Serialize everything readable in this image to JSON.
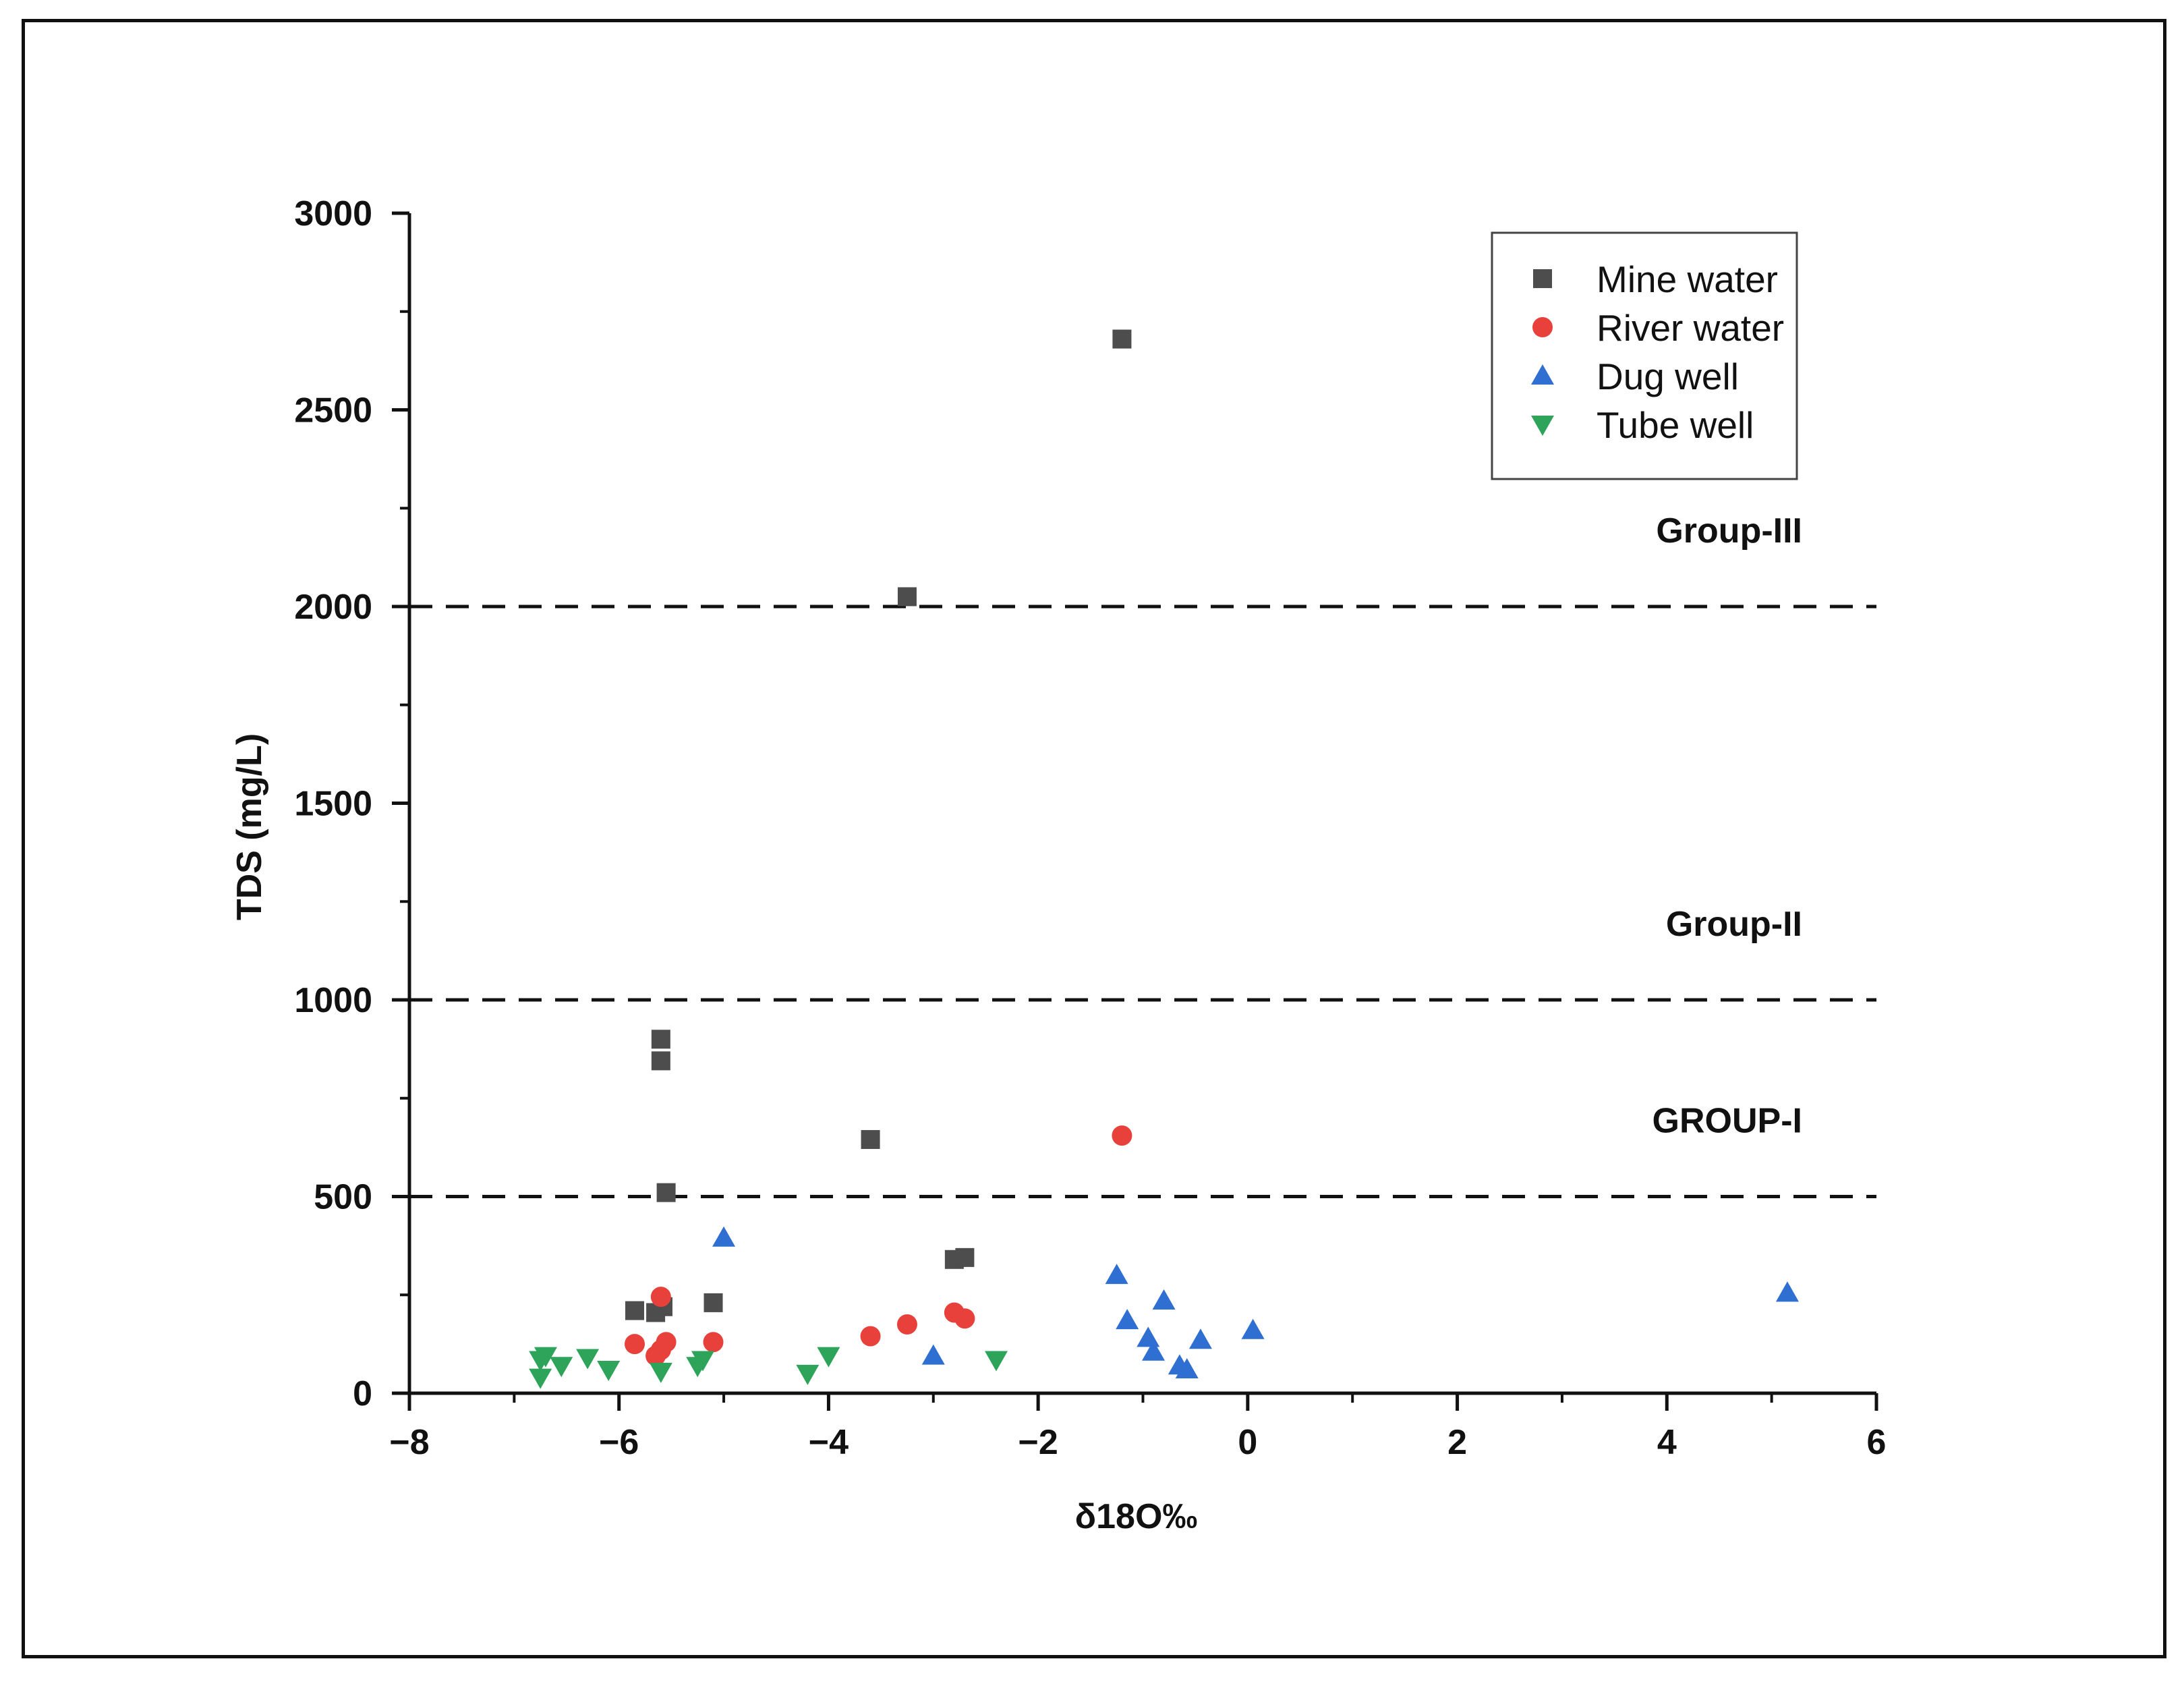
{
  "chart_data": {
    "type": "scatter",
    "title": "",
    "xlabel": "δ18O‰",
    "ylabel": "TDS (mg/L)",
    "xlim": [
      -8,
      6
    ],
    "ylim": [
      0,
      3000
    ],
    "xticks": [
      "−8",
      "−6",
      "−4",
      "−2",
      "0",
      "2",
      "4",
      "6"
    ],
    "yticks": [
      "0",
      "500",
      "1000",
      "1500",
      "2000",
      "2500",
      "3000"
    ],
    "xtick_values": [
      -8,
      -6,
      -4,
      -2,
      0,
      2,
      4,
      6
    ],
    "ytick_values": [
      0,
      500,
      1000,
      1500,
      2000,
      2500,
      3000
    ],
    "grid": false,
    "legend_position": "top-right",
    "thresholds": [
      {
        "value": 500,
        "label": "GROUP-I"
      },
      {
        "value": 1000,
        "label": "Group-II"
      },
      {
        "value": 2000,
        "label": "Group-III"
      }
    ],
    "series": [
      {
        "name": "Mine water",
        "marker": "square",
        "color": "#4d4d4d",
        "points": [
          {
            "x": -1.2,
            "y": 2680
          },
          {
            "x": -3.25,
            "y": 2025
          },
          {
            "x": -5.6,
            "y": 900
          },
          {
            "x": -5.6,
            "y": 845
          },
          {
            "x": -3.6,
            "y": 645
          },
          {
            "x": -5.55,
            "y": 510
          },
          {
            "x": -2.8,
            "y": 340
          },
          {
            "x": -2.7,
            "y": 345
          },
          {
            "x": -5.1,
            "y": 230
          },
          {
            "x": -5.85,
            "y": 210
          },
          {
            "x": -5.65,
            "y": 205
          },
          {
            "x": -5.58,
            "y": 220
          }
        ]
      },
      {
        "name": "River water",
        "marker": "circle",
        "color": "#e8403a",
        "points": [
          {
            "x": -1.2,
            "y": 655
          },
          {
            "x": -5.6,
            "y": 245
          },
          {
            "x": -2.8,
            "y": 205
          },
          {
            "x": -2.7,
            "y": 190
          },
          {
            "x": -3.25,
            "y": 175
          },
          {
            "x": -3.6,
            "y": 145
          },
          {
            "x": -5.85,
            "y": 125
          },
          {
            "x": -5.1,
            "y": 130
          },
          {
            "x": -5.55,
            "y": 130
          },
          {
            "x": -5.6,
            "y": 110
          },
          {
            "x": -5.65,
            "y": 95
          }
        ]
      },
      {
        "name": "Dug well",
        "marker": "triangle-up",
        "color": "#2f6fd1",
        "points": [
          {
            "x": -5.0,
            "y": 395
          },
          {
            "x": -1.25,
            "y": 300
          },
          {
            "x": 5.15,
            "y": 255
          },
          {
            "x": -0.8,
            "y": 235
          },
          {
            "x": -1.15,
            "y": 185
          },
          {
            "x": 0.05,
            "y": 160
          },
          {
            "x": -0.95,
            "y": 140
          },
          {
            "x": -0.45,
            "y": 135
          },
          {
            "x": -0.9,
            "y": 105
          },
          {
            "x": -3.0,
            "y": 95
          },
          {
            "x": -0.65,
            "y": 70
          },
          {
            "x": -0.58,
            "y": 60
          }
        ]
      },
      {
        "name": "Tube well",
        "marker": "triangle-down",
        "color": "#2da45a",
        "points": [
          {
            "x": -6.7,
            "y": 95
          },
          {
            "x": -6.75,
            "y": 85
          },
          {
            "x": -6.3,
            "y": 90
          },
          {
            "x": -6.55,
            "y": 70
          },
          {
            "x": -6.1,
            "y": 60
          },
          {
            "x": -6.75,
            "y": 40
          },
          {
            "x": -5.6,
            "y": 55
          },
          {
            "x": -5.25,
            "y": 70
          },
          {
            "x": -5.2,
            "y": 85
          },
          {
            "x": -4.0,
            "y": 95
          },
          {
            "x": -4.2,
            "y": 50
          },
          {
            "x": -2.4,
            "y": 85
          }
        ]
      }
    ]
  }
}
